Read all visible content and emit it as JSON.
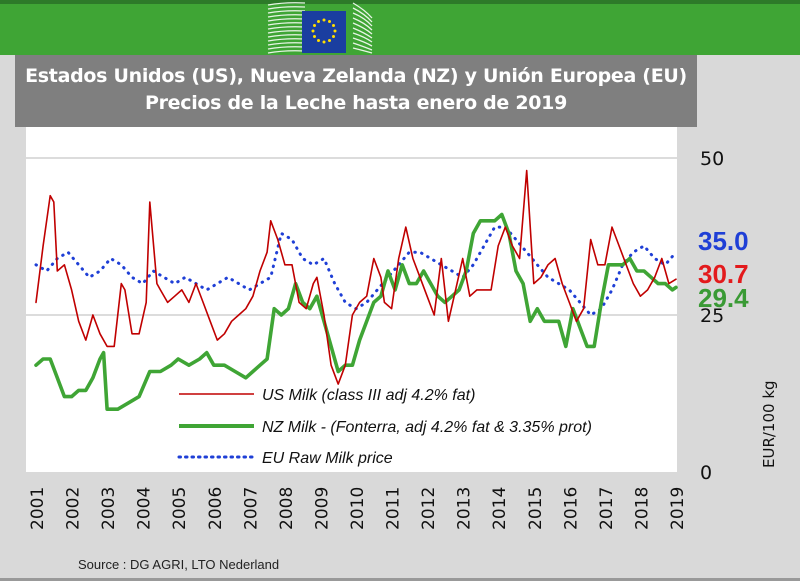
{
  "header": {
    "title_line1": "Estados Unidos (US), Nueva Zelanda (NZ) y Unión Europea (EU)",
    "title_line2": "Precios de la Leche hasta enero de 2019",
    "logo": "european-commission-logo",
    "brand_color": "#3fa535"
  },
  "footer": {
    "source": "Source : DG AGRI, LTO Nederland"
  },
  "chart_data": {
    "type": "line",
    "title": "Estados Unidos (US), Nueva Zelanda (NZ) y Unión Europea (EU) Precios de la Leche hasta enero de 2019",
    "xlabel": "",
    "ylabel": "EUR/100 kg",
    "x_ticks": [
      "2001",
      "2002",
      "2003",
      "2004",
      "2005",
      "2006",
      "2007",
      "2008",
      "2009",
      "2010",
      "2011",
      "2012",
      "2013",
      "2014",
      "2015",
      "2016",
      "2017",
      "2018",
      "2019"
    ],
    "y_ticks": [
      "0",
      "25",
      "50"
    ],
    "ylim": [
      0,
      50
    ],
    "xlim": [
      2001,
      2019
    ],
    "y_axis_side": "right",
    "grid": true,
    "legend_position": "bottom-center",
    "end_labels": [
      {
        "series": "EU Raw Milk price",
        "text": "35.0",
        "color": "#1f3fd6"
      },
      {
        "series": "US Milk (class III adj 4.2% fat)",
        "text": "30.7",
        "color": "#e31a1c"
      },
      {
        "series": "NZ Milk - (Fonterra, adj 4.2% fat & 3.35% prot)",
        "text": "29.4",
        "color": "#3a9a35"
      }
    ],
    "series": [
      {
        "name": "US Milk (class III adj 4.2% fat)",
        "color": "#c00000",
        "style": "solid",
        "x": [
          2001.0,
          2001.2,
          2001.4,
          2001.5,
          2001.6,
          2001.8,
          2002.0,
          2002.2,
          2002.4,
          2002.6,
          2002.8,
          2003.0,
          2003.2,
          2003.4,
          2003.5,
          2003.7,
          2003.9,
          2004.1,
          2004.2,
          2004.4,
          2004.5,
          2004.7,
          2004.9,
          2005.1,
          2005.3,
          2005.5,
          2005.7,
          2005.9,
          2006.1,
          2006.3,
          2006.5,
          2006.7,
          2006.9,
          2007.1,
          2007.3,
          2007.5,
          2007.6,
          2007.8,
          2008.0,
          2008.2,
          2008.4,
          2008.6,
          2008.8,
          2008.9,
          2009.1,
          2009.3,
          2009.5,
          2009.7,
          2009.9,
          2010.1,
          2010.3,
          2010.5,
          2010.7,
          2010.8,
          2011.0,
          2011.2,
          2011.4,
          2011.6,
          2011.8,
          2012.0,
          2012.2,
          2012.4,
          2012.6,
          2012.8,
          2013.0,
          2013.2,
          2013.4,
          2013.6,
          2013.8,
          2014.0,
          2014.2,
          2014.4,
          2014.6,
          2014.8,
          2015.0,
          2015.2,
          2015.4,
          2015.6,
          2015.8,
          2016.0,
          2016.2,
          2016.4,
          2016.6,
          2016.8,
          2017.0,
          2017.2,
          2017.4,
          2017.6,
          2017.8,
          2018.0,
          2018.2,
          2018.4,
          2018.6,
          2018.8,
          2019.0
        ],
        "values": [
          27,
          36,
          44,
          43,
          32,
          33,
          29,
          24,
          21,
          25,
          22,
          20,
          20,
          30,
          29,
          22,
          22,
          27,
          43,
          30,
          29,
          27,
          28,
          29,
          27,
          30,
          27,
          24,
          21,
          22,
          24,
          25,
          26,
          28,
          32,
          35,
          40,
          37,
          33,
          33,
          27,
          26,
          30,
          31,
          25,
          17,
          14,
          17,
          25,
          27,
          28,
          34,
          31,
          27,
          26,
          34,
          39,
          34,
          31,
          28,
          25,
          34,
          24,
          29,
          34,
          28,
          29,
          29,
          29,
          36,
          39,
          36,
          34,
          48,
          30,
          31,
          33,
          34,
          30,
          27,
          24,
          26,
          37,
          33,
          33,
          39,
          36,
          33,
          30,
          28,
          29,
          31,
          34,
          30,
          30.7
        ],
        "last_value": 30.7
      },
      {
        "name": "NZ Milk - (Fonterra, adj 4.2% fat & 3.35% prot)",
        "color": "#3fa535",
        "style": "solid-thick",
        "x": [
          2001.0,
          2001.2,
          2001.4,
          2001.6,
          2001.8,
          2002.0,
          2002.2,
          2002.4,
          2002.6,
          2002.8,
          2002.9,
          2003.0,
          2003.3,
          2003.6,
          2003.9,
          2004.2,
          2004.5,
          2004.8,
          2005.0,
          2005.3,
          2005.6,
          2005.8,
          2006.0,
          2006.3,
          2006.6,
          2006.9,
          2007.1,
          2007.3,
          2007.5,
          2007.7,
          2007.9,
          2008.1,
          2008.3,
          2008.5,
          2008.7,
          2008.9,
          2009.1,
          2009.3,
          2009.5,
          2009.7,
          2009.9,
          2010.1,
          2010.3,
          2010.5,
          2010.7,
          2010.9,
          2011.1,
          2011.3,
          2011.5,
          2011.7,
          2011.9,
          2012.1,
          2012.3,
          2012.5,
          2012.7,
          2012.9,
          2013.1,
          2013.3,
          2013.5,
          2013.7,
          2013.9,
          2014.1,
          2014.3,
          2014.5,
          2014.7,
          2014.9,
          2015.1,
          2015.3,
          2015.5,
          2015.7,
          2015.9,
          2016.1,
          2016.3,
          2016.5,
          2016.7,
          2016.9,
          2017.1,
          2017.3,
          2017.5,
          2017.7,
          2017.9,
          2018.1,
          2018.3,
          2018.5,
          2018.7,
          2018.9,
          2019.0
        ],
        "values": [
          17,
          18,
          18,
          15,
          12,
          12,
          13,
          13,
          15,
          18,
          19,
          10,
          10,
          11,
          12,
          16,
          16,
          17,
          18,
          17,
          18,
          19,
          17,
          17,
          16,
          15,
          16,
          17,
          18,
          26,
          25,
          26,
          30,
          27,
          26,
          28,
          24,
          20,
          16,
          17,
          17,
          21,
          24,
          27,
          28,
          32,
          29,
          33,
          30,
          30,
          32,
          30,
          28,
          27,
          28,
          29,
          32,
          38,
          40,
          40,
          40,
          41,
          38,
          32,
          30,
          24,
          26,
          24,
          24,
          24,
          20,
          26,
          23,
          20,
          20,
          27,
          33,
          33,
          33,
          34,
          32,
          32,
          31,
          30,
          30,
          29,
          29.4
        ],
        "last_value": 29.4
      },
      {
        "name": "EU Raw Milk price",
        "color": "#1f3fd6",
        "style": "dotted",
        "x": [
          2001.0,
          2001.3,
          2001.6,
          2001.9,
          2002.2,
          2002.5,
          2002.8,
          2003.1,
          2003.4,
          2003.7,
          2004.0,
          2004.3,
          2004.6,
          2004.9,
          2005.2,
          2005.5,
          2005.8,
          2006.1,
          2006.4,
          2006.7,
          2007.0,
          2007.3,
          2007.6,
          2007.9,
          2008.2,
          2008.5,
          2008.8,
          2009.1,
          2009.4,
          2009.7,
          2010.0,
          2010.3,
          2010.6,
          2010.9,
          2011.2,
          2011.5,
          2011.8,
          2012.1,
          2012.4,
          2012.7,
          2013.0,
          2013.3,
          2013.6,
          2013.9,
          2014.2,
          2014.5,
          2014.8,
          2015.1,
          2015.4,
          2015.7,
          2016.0,
          2016.3,
          2016.6,
          2016.9,
          2017.2,
          2017.5,
          2017.8,
          2018.1,
          2018.4,
          2018.7,
          2019.0
        ],
        "values": [
          33,
          32,
          34,
          35,
          33,
          31,
          32,
          34,
          33,
          31,
          30,
          32,
          31,
          30,
          31,
          30,
          29,
          30,
          31,
          30,
          29,
          30,
          31,
          38,
          37,
          34,
          33,
          34,
          30,
          27,
          26,
          27,
          29,
          31,
          33,
          35,
          35,
          34,
          33,
          32,
          31,
          33,
          36,
          39,
          39,
          37,
          35,
          33,
          31,
          30,
          29,
          27,
          25,
          26,
          29,
          33,
          35,
          36,
          34,
          33,
          35
        ],
        "last_value": 35.0
      }
    ]
  }
}
